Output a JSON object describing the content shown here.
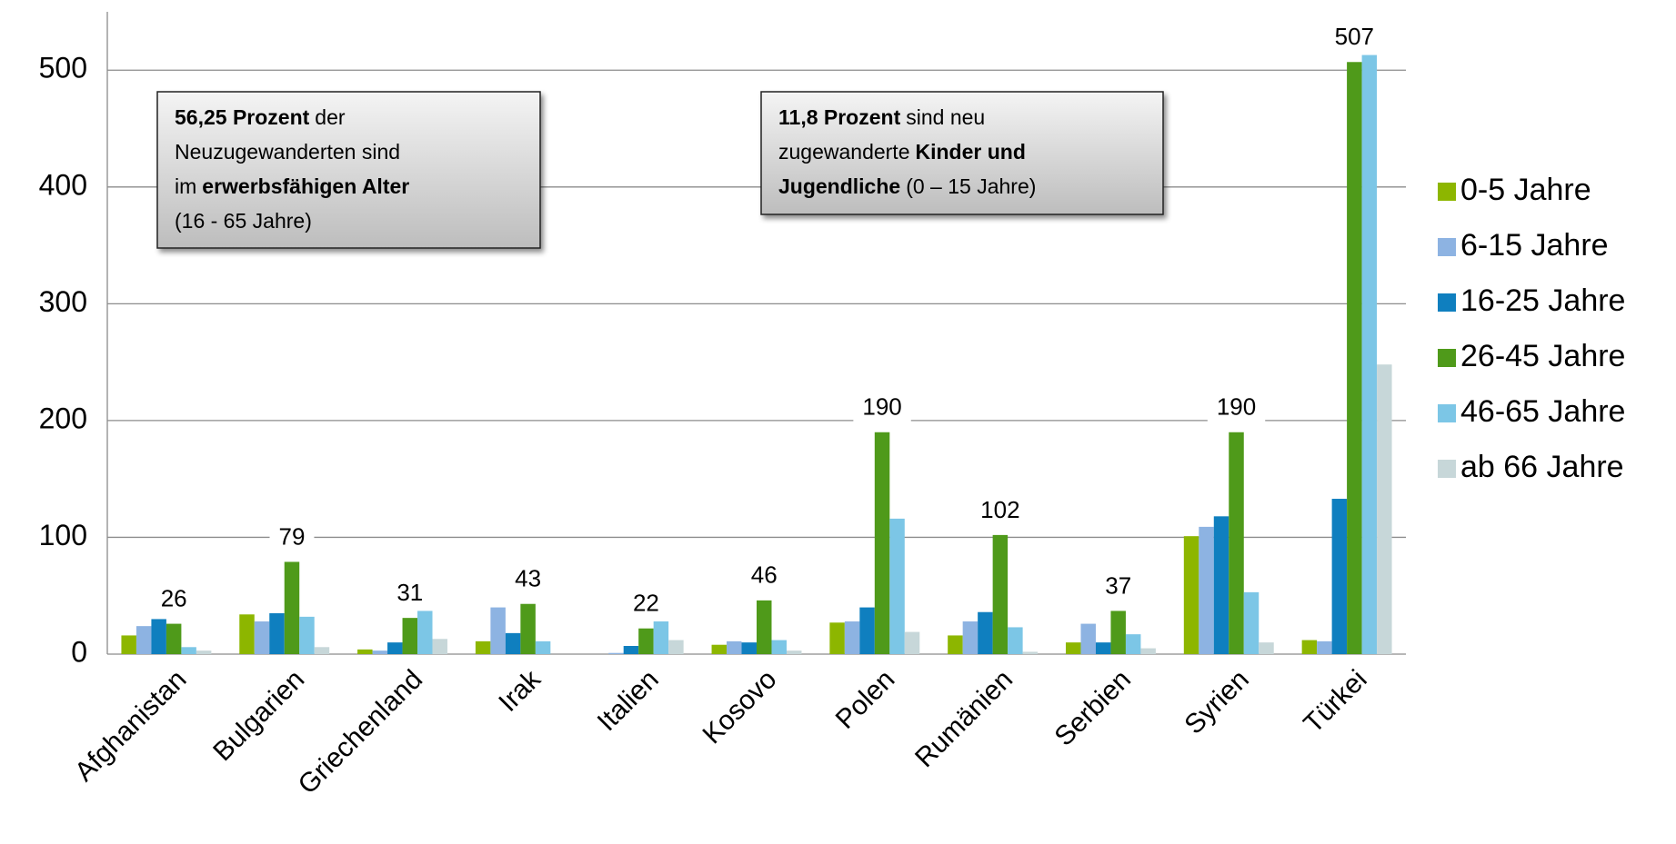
{
  "chart_data": {
    "type": "bar",
    "categories": [
      "Afghanistan",
      "Bulgarien",
      "Griechenland",
      "Irak",
      "Italien",
      "Kosovo",
      "Polen",
      "Rumänien",
      "Serbien",
      "Syrien",
      "Türkei"
    ],
    "series": [
      {
        "name": "0-5 Jahre",
        "color": "#8db600",
        "values": [
          16,
          34,
          4,
          11,
          0,
          8,
          27,
          16,
          10,
          101,
          12
        ]
      },
      {
        "name": "6-15 Jahre",
        "color": "#8db3e2",
        "values": [
          24,
          28,
          3,
          40,
          1,
          11,
          28,
          28,
          26,
          109,
          11
        ]
      },
      {
        "name": "16-25 Jahre",
        "color": "#0f7fbf",
        "values": [
          30,
          35,
          10,
          18,
          7,
          10,
          40,
          36,
          10,
          118,
          133
        ]
      },
      {
        "name": "26-45 Jahre",
        "color": "#4f9a1a",
        "values": [
          26,
          79,
          31,
          43,
          22,
          46,
          190,
          102,
          37,
          190,
          507
        ],
        "data_labels": true
      },
      {
        "name": "46-65 Jahre",
        "color": "#7cc6e6",
        "values": [
          6,
          32,
          37,
          11,
          28,
          12,
          116,
          23,
          17,
          53,
          513
        ]
      },
      {
        "name": "ab 66 Jahre",
        "color": "#c7d7d9",
        "values": [
          3,
          6,
          13,
          0,
          12,
          3,
          19,
          2,
          5,
          10,
          248
        ]
      }
    ],
    "ylim": [
      0,
      550
    ],
    "yticks": [
      0,
      100,
      200,
      300,
      400,
      500
    ],
    "grid": true,
    "legend": "right",
    "annotations": [
      {
        "lines": [
          [
            {
              "text": "56,25 Prozent",
              "bold": true
            },
            {
              "text": "der"
            }
          ],
          [
            {
              "text": "Neuzugewanderten sind"
            }
          ],
          [
            {
              "text": "im"
            },
            {
              "text": "erwerbsfähigen Alter",
              "bold": true
            }
          ],
          [
            {
              "text": "(16 - 65 Jahre)"
            }
          ]
        ]
      },
      {
        "lines": [
          [
            {
              "text": "11,8 Prozent",
              "bold": true
            },
            {
              "text": "sind neu"
            }
          ],
          [
            {
              "text": "zugewanderte"
            },
            {
              "text": "Kinder und",
              "bold": true
            }
          ],
          [
            {
              "text": "Jugendliche",
              "bold": true
            },
            {
              "text": "(0 – 15 Jahre)"
            }
          ]
        ]
      }
    ]
  }
}
